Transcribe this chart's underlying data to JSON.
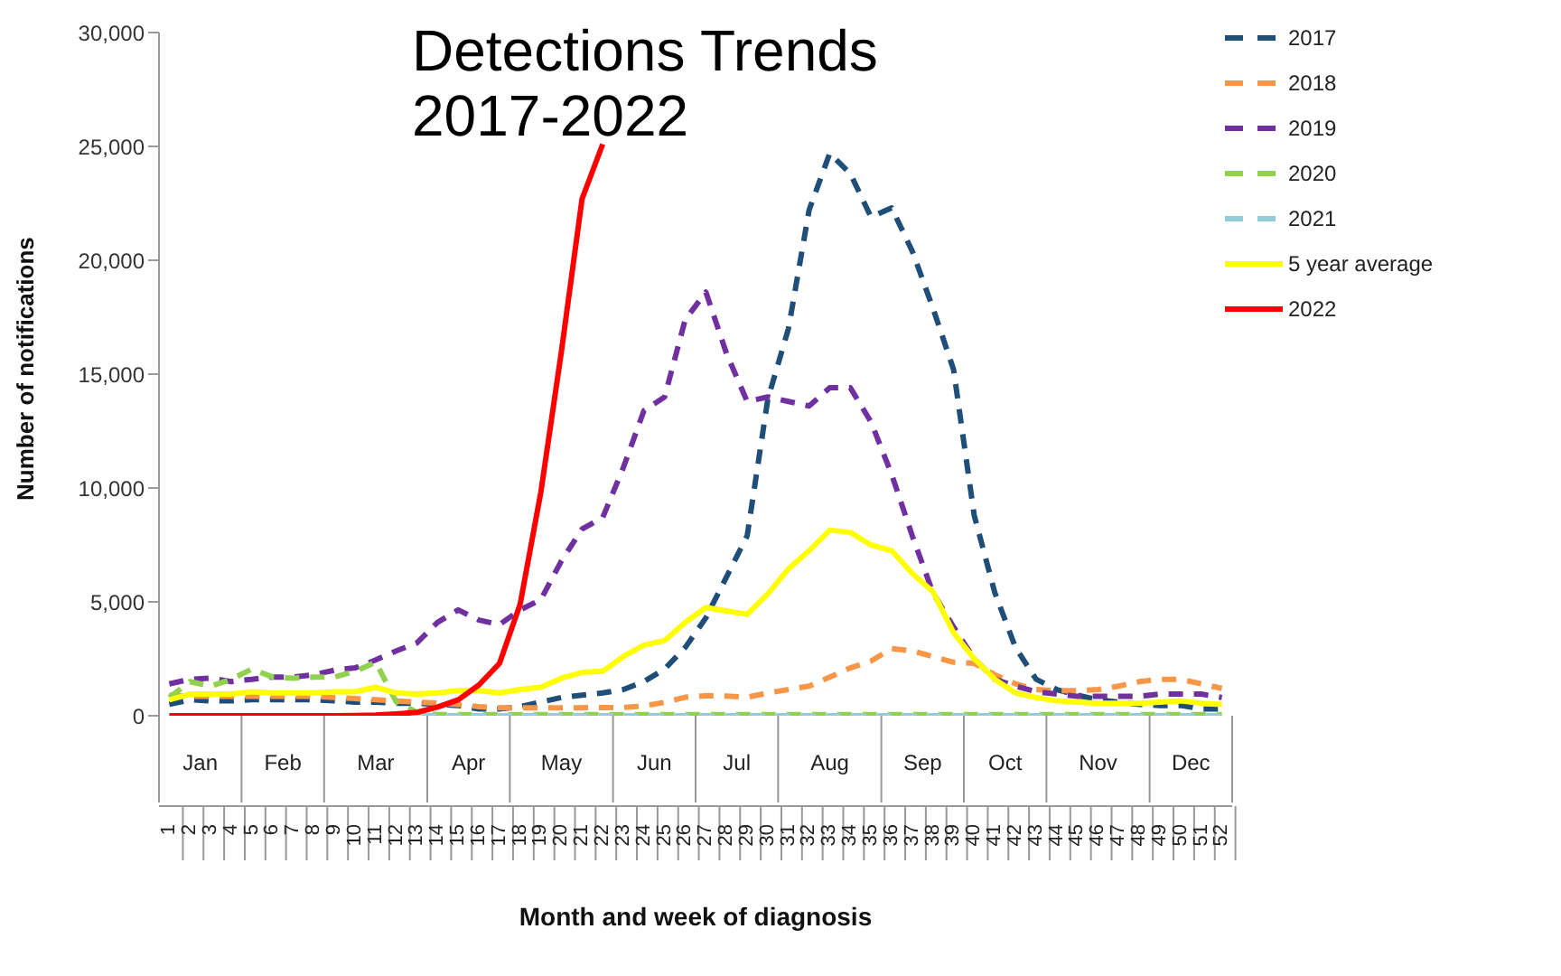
{
  "chart_data": {
    "type": "line",
    "title": "Detections Trends\n2017-2022",
    "xlabel": "Month and week of diagnosis",
    "ylabel": "Number of notifications",
    "categories": [
      "1",
      "2",
      "3",
      "4",
      "5",
      "6",
      "7",
      "8",
      "9",
      "10",
      "11",
      "12",
      "13",
      "14",
      "15",
      "16",
      "17",
      "18",
      "19",
      "20",
      "21",
      "22",
      "23",
      "24",
      "25",
      "26",
      "27",
      "28",
      "29",
      "30",
      "31",
      "32",
      "33",
      "34",
      "35",
      "36",
      "37",
      "38",
      "39",
      "40",
      "41",
      "42",
      "43",
      "44",
      "45",
      "46",
      "47",
      "48",
      "49",
      "50",
      "51",
      "52"
    ],
    "series": [
      {
        "name": "2017",
        "color": "#1f4e79",
        "line_style": "dashed",
        "values": [
          500,
          700,
          650,
          650,
          700,
          700,
          700,
          700,
          650,
          600,
          600,
          550,
          550,
          500,
          450,
          300,
          300,
          400,
          600,
          800,
          900,
          1000,
          1150,
          1500,
          2050,
          3000,
          4300,
          6100,
          7900,
          13900,
          17000,
          22200,
          24700,
          23800,
          21900,
          22300,
          20400,
          17900,
          15200,
          8800,
          5400,
          3000,
          1600,
          1150,
          900,
          700,
          600,
          500,
          450,
          450,
          300,
          300
        ]
      },
      {
        "name": "2018",
        "color": "#f79646",
        "line_style": "dashed",
        "values": [
          900,
          850,
          850,
          850,
          850,
          850,
          850,
          850,
          800,
          750,
          700,
          650,
          600,
          550,
          500,
          400,
          350,
          350,
          350,
          350,
          350,
          360,
          360,
          430,
          590,
          810,
          880,
          860,
          810,
          1000,
          1150,
          1300,
          1700,
          2100,
          2400,
          2950,
          2850,
          2600,
          2350,
          2300,
          1800,
          1400,
          1150,
          1100,
          1100,
          1150,
          1300,
          1500,
          1600,
          1600,
          1400,
          1200
        ]
      },
      {
        "name": "2019",
        "color": "#7030a0",
        "line_style": "dashed",
        "values": [
          1400,
          1600,
          1650,
          1500,
          1600,
          1700,
          1700,
          1800,
          2000,
          2100,
          2450,
          2850,
          3200,
          4100,
          4650,
          4200,
          4000,
          4650,
          5100,
          6800,
          8200,
          8700,
          10900,
          13400,
          14000,
          17400,
          18600,
          15900,
          13800,
          14000,
          13800,
          13600,
          14400,
          14400,
          12900,
          10600,
          7900,
          5400,
          3900,
          2500,
          1600,
          1300,
          1050,
          950,
          850,
          850,
          850,
          850,
          950,
          950,
          950,
          800
        ]
      },
      {
        "name": "2020",
        "color": "#92d050",
        "line_style": "dashed",
        "values": [
          800,
          1500,
          1300,
          1600,
          2050,
          1700,
          1650,
          1700,
          1700,
          1950,
          2350,
          600,
          150,
          50,
          50,
          50,
          50,
          50,
          50,
          50,
          50,
          50,
          50,
          50,
          50,
          50,
          50,
          50,
          50,
          50,
          50,
          50,
          50,
          50,
          50,
          50,
          50,
          50,
          50,
          50,
          50,
          50,
          50,
          50,
          50,
          50,
          50,
          50,
          50,
          50,
          50,
          50
        ]
      },
      {
        "name": "2021",
        "color": "#93cddd",
        "line_style": "dashed",
        "values": [
          null,
          null,
          null,
          null,
          null,
          null,
          null,
          null,
          null,
          null,
          null,
          0,
          0,
          0,
          0,
          0,
          0,
          0,
          0,
          0,
          0,
          0,
          0,
          0,
          0,
          0,
          0,
          0,
          0,
          0,
          0,
          0,
          0,
          0,
          0,
          0,
          0,
          0,
          0,
          0,
          0,
          0,
          0,
          0,
          0,
          0,
          0,
          0,
          0,
          0,
          0,
          0
        ]
      },
      {
        "name": "5 year average",
        "color": "#ffff00",
        "line_style": "solid",
        "values": [
          700,
          950,
          950,
          950,
          1050,
          1000,
          1000,
          1000,
          1050,
          1050,
          1250,
          1000,
          950,
          1000,
          1100,
          1100,
          1000,
          1150,
          1250,
          1650,
          1900,
          1950,
          2600,
          3100,
          3300,
          4100,
          4750,
          4600,
          4450,
          5350,
          6450,
          7250,
          8150,
          8050,
          7500,
          7250,
          6250,
          5450,
          3650,
          2500,
          1600,
          1000,
          800,
          650,
          600,
          550,
          550,
          550,
          600,
          650,
          550,
          500
        ]
      },
      {
        "name": "2022",
        "color": "#ff0000",
        "line_style": "solid",
        "values": [
          0,
          0,
          0,
          0,
          0,
          0,
          0,
          0,
          0,
          10,
          30,
          80,
          150,
          380,
          700,
          1350,
          2300,
          4900,
          9800,
          16000,
          22700,
          25100,
          null,
          null,
          null,
          null,
          null,
          null,
          null,
          null,
          null,
          null,
          null,
          null,
          null,
          null,
          null,
          null,
          null,
          null,
          null,
          null,
          null,
          null,
          null,
          null,
          null,
          null,
          null,
          null,
          null,
          null
        ]
      }
    ],
    "ylim": [
      0,
      30000
    ],
    "yticks": [
      0,
      {
        "value": 5000,
        "label": "5,000"
      },
      {
        "value": 10000,
        "label": "10,000"
      },
      {
        "value": 15000,
        "label": "15,000"
      },
      {
        "value": 20000,
        "label": "20,000"
      },
      {
        "value": 25000,
        "label": "25,000"
      },
      {
        "value": 30000,
        "label": "30,000"
      }
    ],
    "grid": false,
    "legend": "top right",
    "marker": "none",
    "annotations": [
      "Jan",
      "Feb",
      "Mar",
      "Apr",
      "May",
      "Jun",
      "Jul",
      "Aug",
      "Sep",
      "Oct",
      "Nov",
      "Dec"
    ]
  }
}
